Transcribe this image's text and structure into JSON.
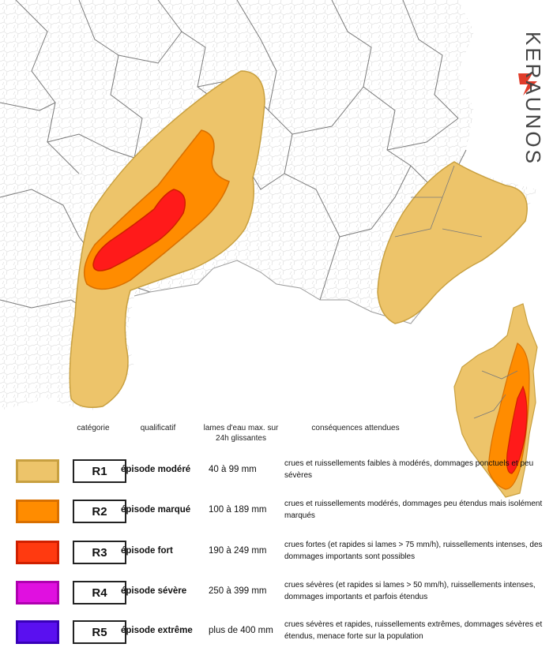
{
  "brand": {
    "name": "KERAUNOS",
    "accent": "#e03c2a"
  },
  "colors": {
    "land": "#ffffff",
    "border_fine": "#c8c8c8",
    "border_dept": "#777777",
    "sea": "#ffffff",
    "R1": "#edc46a",
    "R2": "#ff8c00",
    "R3": "#ff3a10",
    "R4": "#e010e0",
    "R5": "#5a10f0",
    "R1_border": "#c8a040",
    "R2_border": "#d97000",
    "R3_border": "#d02000",
    "R4_border": "#b000b0",
    "R5_border": "#3800b8"
  },
  "legend": {
    "headers": {
      "categorie": "catégorie",
      "qualificatif": "qualificatif",
      "lames": "lames d'eau max. sur 24h glissantes",
      "consequences": "conséquences attendues"
    },
    "rows": [
      {
        "code": "R1",
        "qualificatif": "épisode modéré",
        "range": "40 à 99 mm",
        "consequences": "crues et ruissellements faibles à modérés, dommages ponctuels et peu sévères"
      },
      {
        "code": "R2",
        "qualificatif": "épisode marqué",
        "range": "100 à 189 mm",
        "consequences": "crues et ruissellements modérés, dommages peu étendus mais isolément marqués"
      },
      {
        "code": "R3",
        "qualificatif": "épisode fort",
        "range": "190 à 249 mm",
        "consequences": "crues fortes (et rapides si lames > 75 mm/h), ruissellements intenses, des dommages importants sont possibles"
      },
      {
        "code": "R4",
        "qualificatif": "épisode sévère",
        "range": "250 à 399 mm",
        "consequences": "crues sévères (et rapides si lames > 50 mm/h), ruissellements intenses, dommages importants et parfois étendus"
      },
      {
        "code": "R5",
        "qualificatif": "épisode extrême",
        "range": "plus de 400 mm",
        "consequences": "crues sévères et rapides, ruissellements extrêmes, dommages sévères et étendus, menace forte sur la population"
      }
    ]
  }
}
